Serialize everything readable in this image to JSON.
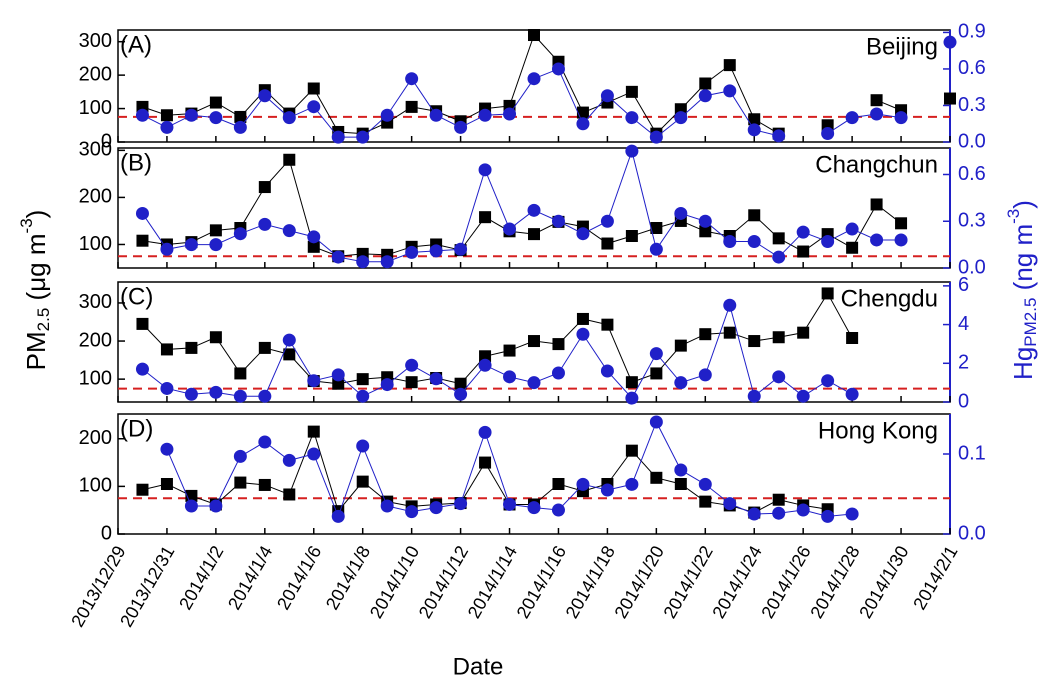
{
  "shared": {
    "xlabel": "Date",
    "ylabel": [
      "PM",
      "2.5",
      " (μg m",
      "-3",
      ")"
    ],
    "y2label": [
      "Hg",
      "PM2.5",
      " (ng m",
      "-3",
      ")"
    ],
    "xlim": [
      "2013/12/29",
      "2014/2/1"
    ],
    "xticks": [
      "2013/12/29",
      "2013/12/31",
      "2014/1/2",
      "2014/1/4",
      "2014/1/6",
      "2014/1/8",
      "2014/1/10",
      "2014/1/12",
      "2014/1/14",
      "2014/1/16",
      "2014/1/18",
      "2014/1/20",
      "2014/1/22",
      "2014/1/24",
      "2014/1/26",
      "2014/1/28",
      "2014/1/30",
      "2014/2/1"
    ]
  },
  "chart_data": [
    {
      "type": "line",
      "panel_label": "(A)",
      "title": "Beijing",
      "x": [
        "2013/12/30",
        "2013/12/31",
        "2014/1/1",
        "2014/1/2",
        "2014/1/3",
        "2014/1/4",
        "2014/1/5",
        "2014/1/6",
        "2014/1/7",
        "2014/1/8",
        "2014/1/9",
        "2014/1/10",
        "2014/1/11",
        "2014/1/12",
        "2014/1/13",
        "2014/1/14",
        "2014/1/15",
        "2014/1/16",
        "2014/1/17",
        "2014/1/18",
        "2014/1/19",
        "2014/1/20",
        "2014/1/21",
        "2014/1/22",
        "2014/1/23",
        "2014/1/24",
        "2014/1/25",
        "2014/1/26",
        "2014/1/27",
        "2014/1/28",
        "2014/1/29",
        "2014/1/30",
        "2014/1/31",
        "2014/2/1"
      ],
      "ylim": [
        0,
        335
      ],
      "yticks": [
        0,
        100,
        200,
        300
      ],
      "y2lim": [
        0,
        0.92
      ],
      "y2ticks": [
        {
          "value": 0,
          "label": "0.0"
        },
        0.3,
        0.6,
        0.9
      ],
      "ref_line": {
        "value": 75,
        "color": "#d62020"
      },
      "series": [
        {
          "name": "PM2.5",
          "color": "#000000",
          "marker": "square",
          "values": [
            105,
            80,
            85,
            118,
            75,
            155,
            85,
            160,
            30,
            25,
            58,
            105,
            92,
            62,
            100,
            108,
            320,
            240,
            88,
            118,
            150,
            25,
            98,
            175,
            230,
            68,
            25,
            null,
            50,
            null,
            125,
            95,
            null,
            130
          ]
        },
        {
          "name": "Hg",
          "color": "#2020c8",
          "marker": "circle",
          "axis": "y2",
          "values": [
            0.22,
            0.12,
            0.22,
            0.2,
            0.12,
            0.38,
            0.2,
            0.29,
            0.04,
            0.04,
            0.22,
            0.52,
            0.22,
            0.12,
            0.22,
            0.23,
            0.52,
            0.6,
            0.15,
            0.38,
            0.2,
            0.04,
            0.2,
            0.38,
            0.42,
            0.1,
            0.05,
            null,
            0.07,
            0.2,
            0.23,
            0.2,
            null,
            0.82
          ]
        }
      ]
    },
    {
      "type": "line",
      "panel_label": "(B)",
      "title": "Changchun",
      "x": [
        "2013/12/30",
        "2013/12/31",
        "2014/1/1",
        "2014/1/2",
        "2014/1/3",
        "2014/1/4",
        "2014/1/5",
        "2014/1/6",
        "2014/1/7",
        "2014/1/8",
        "2014/1/9",
        "2014/1/10",
        "2014/1/11",
        "2014/1/12",
        "2014/1/13",
        "2014/1/14",
        "2014/1/15",
        "2014/1/16",
        "2014/1/17",
        "2014/1/18",
        "2014/1/19",
        "2014/1/20",
        "2014/1/21",
        "2014/1/22",
        "2014/1/23",
        "2014/1/24",
        "2014/1/25",
        "2014/1/26",
        "2014/1/27",
        "2014/1/28",
        "2014/1/29",
        "2014/1/30"
      ],
      "ylim": [
        50,
        305
      ],
      "yticks": [
        100,
        200,
        300
      ],
      "y2lim": [
        0,
        0.77
      ],
      "y2ticks": [
        {
          "value": 0,
          "label": "0.0"
        },
        0.3,
        0.6
      ],
      "ref_line": {
        "value": 75,
        "color": "#d62020"
      },
      "series": [
        {
          "name": "PM2.5",
          "color": "#000000",
          "marker": "square",
          "values": [
            108,
            100,
            105,
            130,
            135,
            222,
            280,
            95,
            75,
            80,
            78,
            95,
            100,
            88,
            158,
            128,
            122,
            148,
            138,
            102,
            118,
            135,
            150,
            128,
            118,
            162,
            113,
            85,
            122,
            93,
            185,
            145
          ]
        },
        {
          "name": "Hg",
          "color": "#2020c8",
          "marker": "circle",
          "axis": "y2",
          "values": [
            0.35,
            0.12,
            0.15,
            0.15,
            0.22,
            0.28,
            0.24,
            0.2,
            0.07,
            0.04,
            0.04,
            0.1,
            0.11,
            0.12,
            0.63,
            0.25,
            0.37,
            0.3,
            0.22,
            0.3,
            0.75,
            0.12,
            0.35,
            0.3,
            0.17,
            0.17,
            0.07,
            0.23,
            0.17,
            0.25,
            0.18,
            0.18
          ]
        }
      ]
    },
    {
      "type": "line",
      "panel_label": "(C)",
      "title": "Chengdu",
      "x": [
        "2013/12/30",
        "2013/12/31",
        "2014/1/1",
        "2014/1/2",
        "2014/1/3",
        "2014/1/4",
        "2014/1/5",
        "2014/1/6",
        "2014/1/7",
        "2014/1/8",
        "2014/1/9",
        "2014/1/10",
        "2014/1/11",
        "2014/1/12",
        "2014/1/13",
        "2014/1/14",
        "2014/1/15",
        "2014/1/16",
        "2014/1/17",
        "2014/1/18",
        "2014/1/19",
        "2014/1/20",
        "2014/1/21",
        "2014/1/22",
        "2014/1/23",
        "2014/1/24",
        "2014/1/25",
        "2014/1/26",
        "2014/1/27",
        "2014/1/28"
      ],
      "ylim": [
        40,
        355
      ],
      "yticks": [
        100,
        200,
        300
      ],
      "y2lim": [
        0,
        6.2
      ],
      "y2ticks": [
        0,
        2,
        4,
        6
      ],
      "ref_line": {
        "value": 75,
        "color": "#d62020"
      },
      "series": [
        {
          "name": "PM2.5",
          "color": "#000000",
          "marker": "square",
          "values": [
            245,
            178,
            182,
            210,
            115,
            182,
            165,
            95,
            88,
            100,
            105,
            92,
            103,
            88,
            160,
            175,
            200,
            192,
            258,
            243,
            92,
            115,
            188,
            218,
            222,
            200,
            210,
            222,
            325,
            208
          ]
        },
        {
          "name": "Hg",
          "color": "#2020c8",
          "marker": "circle",
          "axis": "y2",
          "values": [
            1.7,
            0.7,
            0.4,
            0.5,
            0.3,
            0.3,
            3.2,
            1.1,
            1.4,
            0.3,
            0.9,
            1.9,
            1.2,
            0.4,
            1.9,
            1.3,
            1.0,
            1.5,
            3.5,
            1.6,
            0.2,
            2.5,
            1.0,
            1.4,
            5.0,
            0.3,
            1.3,
            0.3,
            1.1,
            0.4
          ]
        }
      ]
    },
    {
      "type": "line",
      "panel_label": "(D)",
      "title": "Hong Kong",
      "x": [
        "2013/12/30",
        "2013/12/31",
        "2014/1/1",
        "2014/1/2",
        "2014/1/3",
        "2014/1/4",
        "2014/1/5",
        "2014/1/6",
        "2014/1/7",
        "2014/1/8",
        "2014/1/9",
        "2014/1/10",
        "2014/1/11",
        "2014/1/12",
        "2014/1/13",
        "2014/1/14",
        "2014/1/15",
        "2014/1/16",
        "2014/1/17",
        "2014/1/18",
        "2014/1/19",
        "2014/1/20",
        "2014/1/21",
        "2014/1/22",
        "2014/1/23",
        "2014/1/24",
        "2014/1/25",
        "2014/1/26",
        "2014/1/27",
        "2014/1/28"
      ],
      "ylim": [
        0,
        252
      ],
      "yticks": [
        0,
        100,
        200
      ],
      "y2lim": [
        0,
        0.15
      ],
      "y2ticks": [
        {
          "value": 0,
          "label": "0.0"
        },
        0.1
      ],
      "ref_line": {
        "value": 75,
        "color": "#d62020"
      },
      "series": [
        {
          "name": "PM2.5",
          "color": "#000000",
          "marker": "square",
          "values": [
            93,
            105,
            80,
            62,
            108,
            103,
            83,
            215,
            48,
            110,
            68,
            58,
            62,
            65,
            150,
            62,
            62,
            105,
            90,
            105,
            175,
            118,
            105,
            68,
            60,
            45,
            72,
            60,
            52,
            null
          ]
        },
        {
          "name": "Hg",
          "color": "#2020c8",
          "marker": "circle",
          "axis": "y2",
          "values": [
            null,
            0.106,
            0.035,
            0.035,
            0.097,
            0.115,
            0.092,
            0.1,
            0.022,
            0.11,
            0.035,
            0.028,
            0.033,
            0.038,
            0.127,
            0.037,
            0.033,
            0.03,
            0.062,
            0.055,
            0.062,
            0.14,
            0.08,
            0.062,
            0.038,
            0.025,
            0.026,
            0.03,
            0.022,
            0.025
          ]
        }
      ]
    }
  ]
}
